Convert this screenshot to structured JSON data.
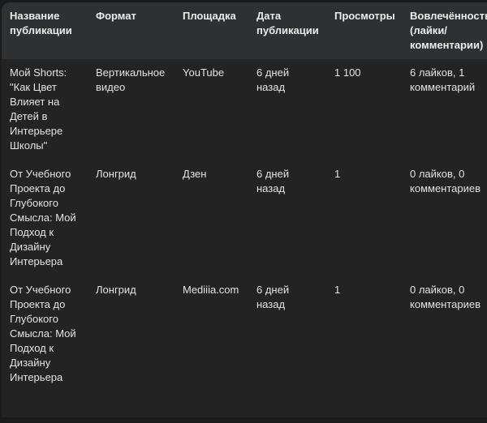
{
  "table": {
    "headers": [
      "Название публикации",
      "Формат",
      "Площадка",
      "Дата публикации",
      "Просмотры",
      "Вовлечённость (лайки/ комментарии)"
    ],
    "rows": [
      [
        "Мой Shorts: \"Как Цвет Влияет на Детей в Интерьере Школы\"",
        "Вертикальное видео",
        "YouTube",
        "6 дней назад",
        "1 100",
        "6 лайков, 1 комментарий"
      ],
      [
        "От Учебного Проекта до Глубокого Смысла: Мой Подход к Дизайну Интерьера",
        "Лонгрид",
        "Дзен",
        "6 дней назад",
        "1",
        "0 лайков, 0 комментариев"
      ],
      [
        "От Учебного Проекта до Глубокого Смысла: Мой Подход к Дизайну Интерьера",
        "Лонгрид",
        "Mediiia.com",
        "6 дней назад",
        "1",
        "0 лайков, 0 комментариев"
      ]
    ]
  }
}
